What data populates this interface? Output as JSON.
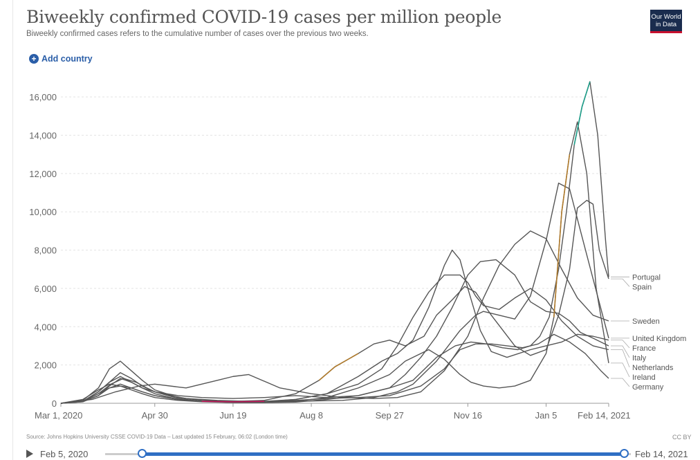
{
  "header": {
    "title": "Biweekly confirmed COVID-19 cases per million people",
    "subtitle": "Biweekly confirmed cases refers to the cumulative number of cases over the previous two weeks.",
    "logo_text": "Our World in Data",
    "add_country": "Add country"
  },
  "footer": {
    "source": "Source: Johns Hopkins University CSSE COVID-19 Data – Last updated 15 February, 06:02 (London time)",
    "license": "CC BY"
  },
  "timeline": {
    "start_label": "Feb 5, 2020",
    "end_label": "Feb 14, 2021",
    "range_start_fraction": 0.0,
    "range_end_fraction": 1.0
  },
  "chart_data": {
    "type": "line",
    "title": "Biweekly confirmed COVID-19 cases per million people",
    "x_ticks": [
      "Mar 1, 2020",
      "Apr 30",
      "Jun 19",
      "Aug 8",
      "Sep 27",
      "Nov 16",
      "Jan 5",
      "Feb 14, 2021"
    ],
    "x_tick_days": [
      0,
      60,
      110,
      160,
      210,
      260,
      310,
      350
    ],
    "x_range_days": [
      0,
      350
    ],
    "y_ticks": [
      0,
      2000,
      4000,
      6000,
      8000,
      10000,
      12000,
      14000,
      16000
    ],
    "ylim": [
      0,
      16800
    ],
    "grid": true,
    "series": [
      {
        "name": "Spain",
        "color": "#555555",
        "x": [
          0,
          14,
          24,
          31,
          38,
          45,
          52,
          60,
          75,
          90,
          110,
          130,
          150,
          165,
          175,
          190,
          200,
          210,
          220,
          232,
          240,
          250,
          258,
          265,
          275,
          290,
          300,
          310,
          318,
          325,
          330,
          336,
          340,
          344,
          350
        ],
        "y": [
          0,
          150,
          800,
          1800,
          2200,
          1700,
          1200,
          700,
          300,
          150,
          100,
          150,
          500,
          1200,
          1900,
          2600,
          3100,
          3300,
          3000,
          3500,
          4600,
          5400,
          6100,
          5800,
          4600,
          3000,
          2500,
          2800,
          4600,
          7000,
          10200,
          10600,
          10400,
          8000,
          6500
        ]
      },
      {
        "name": "Portugal",
        "color": "#555555",
        "x": [
          0,
          14,
          24,
          31,
          38,
          45,
          52,
          60,
          75,
          90,
          110,
          130,
          150,
          170,
          190,
          210,
          225,
          240,
          252,
          262,
          272,
          282,
          292,
          300,
          306,
          312,
          318,
          323,
          328,
          333,
          338,
          343,
          348,
          350
        ],
        "y": [
          0,
          100,
          600,
          1100,
          1400,
          1100,
          800,
          600,
          400,
          300,
          250,
          300,
          400,
          300,
          400,
          800,
          1200,
          2400,
          3000,
          3200,
          3100,
          2900,
          2800,
          3000,
          3500,
          4500,
          7000,
          10000,
          13500,
          15500,
          16800,
          14000,
          8500,
          6600
        ]
      },
      {
        "name": "Sweden",
        "color": "#555555",
        "x": [
          0,
          20,
          35,
          50,
          60,
          80,
          100,
          110,
          120,
          140,
          160,
          180,
          200,
          215,
          230,
          245,
          260,
          270,
          280,
          290,
          300,
          310,
          320,
          330,
          340,
          350
        ],
        "y": [
          0,
          200,
          600,
          900,
          1000,
          800,
          1200,
          1400,
          1500,
          800,
          500,
          300,
          250,
          300,
          600,
          1700,
          3500,
          5500,
          7200,
          8300,
          9000,
          8600,
          7000,
          5500,
          4600,
          4300
        ]
      },
      {
        "name": "United Kingdom",
        "color": "#555555",
        "x": [
          0,
          14,
          24,
          32,
          40,
          48,
          55,
          60,
          70,
          80,
          100,
          120,
          150,
          180,
          200,
          215,
          225,
          240,
          255,
          265,
          270,
          280,
          290,
          300,
          310,
          318,
          325,
          332,
          340,
          350
        ],
        "y": [
          0,
          100,
          500,
          1000,
          1300,
          1100,
          800,
          600,
          400,
          250,
          150,
          100,
          100,
          150,
          300,
          600,
          1000,
          2200,
          3800,
          4600,
          4800,
          4600,
          4400,
          5600,
          8500,
          11500,
          11200,
          9000,
          6500,
          3400
        ]
      },
      {
        "name": "France",
        "color": "#555555",
        "x": [
          0,
          14,
          24,
          31,
          38,
          45,
          52,
          60,
          75,
          90,
          110,
          130,
          150,
          170,
          190,
          205,
          215,
          225,
          235,
          245,
          250,
          255,
          260,
          268,
          275,
          285,
          300,
          310,
          320,
          330,
          340,
          350
        ],
        "y": [
          0,
          100,
          600,
          1100,
          1600,
          1300,
          900,
          600,
          250,
          100,
          80,
          100,
          200,
          500,
          1400,
          2200,
          2600,
          3300,
          5000,
          7200,
          8000,
          7500,
          6000,
          3800,
          2700,
          2400,
          2800,
          3000,
          3200,
          3600,
          3500,
          3300
        ]
      },
      {
        "name": "Netherlands",
        "color": "#555555",
        "x": [
          0,
          14,
          24,
          31,
          38,
          45,
          52,
          60,
          75,
          90,
          110,
          130,
          150,
          170,
          190,
          205,
          215,
          225,
          235,
          245,
          255,
          260,
          265,
          270,
          280,
          290,
          300,
          310,
          320,
          330,
          340,
          350
        ],
        "y": [
          0,
          80,
          400,
          800,
          1000,
          800,
          600,
          400,
          200,
          100,
          50,
          80,
          200,
          500,
          1000,
          1800,
          3000,
          4500,
          5800,
          6700,
          6700,
          6300,
          5600,
          5100,
          4900,
          5500,
          6000,
          5400,
          4300,
          3500,
          3000,
          2800
        ]
      },
      {
        "name": "Italy",
        "color": "#555555",
        "x": [
          0,
          14,
          24,
          31,
          38,
          45,
          52,
          60,
          75,
          90,
          110,
          130,
          150,
          170,
          190,
          210,
          220,
          230,
          240,
          250,
          260,
          268,
          278,
          290,
          300,
          310,
          318,
          325,
          332,
          340,
          350
        ],
        "y": [
          0,
          200,
          700,
          1000,
          900,
          700,
          500,
          300,
          150,
          80,
          40,
          40,
          60,
          200,
          400,
          800,
          1500,
          2400,
          3500,
          5000,
          6700,
          7400,
          7500,
          6700,
          5300,
          4800,
          4700,
          4300,
          3700,
          3400,
          3000
        ]
      },
      {
        "name": "Ireland",
        "color": "#555555",
        "x": [
          0,
          14,
          24,
          31,
          38,
          45,
          52,
          60,
          75,
          90,
          110,
          130,
          150,
          170,
          190,
          210,
          220,
          235,
          245,
          255,
          262,
          270,
          280,
          290,
          300,
          310,
          315,
          320,
          325,
          330,
          336,
          342,
          350
        ],
        "y": [
          0,
          80,
          400,
          900,
          1300,
          1100,
          800,
          500,
          200,
          100,
          40,
          40,
          100,
          300,
          800,
          1500,
          2200,
          2800,
          2300,
          1500,
          1100,
          900,
          800,
          900,
          1200,
          2600,
          4500,
          10000,
          13000,
          14700,
          12000,
          6000,
          2100
        ]
      },
      {
        "name": "Germany",
        "color": "#555555",
        "x": [
          0,
          14,
          24,
          31,
          38,
          45,
          52,
          60,
          75,
          90,
          110,
          130,
          150,
          170,
          190,
          210,
          230,
          245,
          255,
          265,
          275,
          285,
          295,
          305,
          315,
          325,
          335,
          345,
          350
        ],
        "y": [
          0,
          100,
          500,
          800,
          900,
          800,
          600,
          400,
          200,
          100,
          60,
          80,
          150,
          250,
          300,
          400,
          900,
          1800,
          2800,
          3100,
          3100,
          3000,
          2900,
          3100,
          3600,
          3200,
          2600,
          1700,
          1300
        ]
      }
    ],
    "highlight_colors": [
      "#c2185b",
      "#b07b2c",
      "#1e9f8a"
    ]
  }
}
